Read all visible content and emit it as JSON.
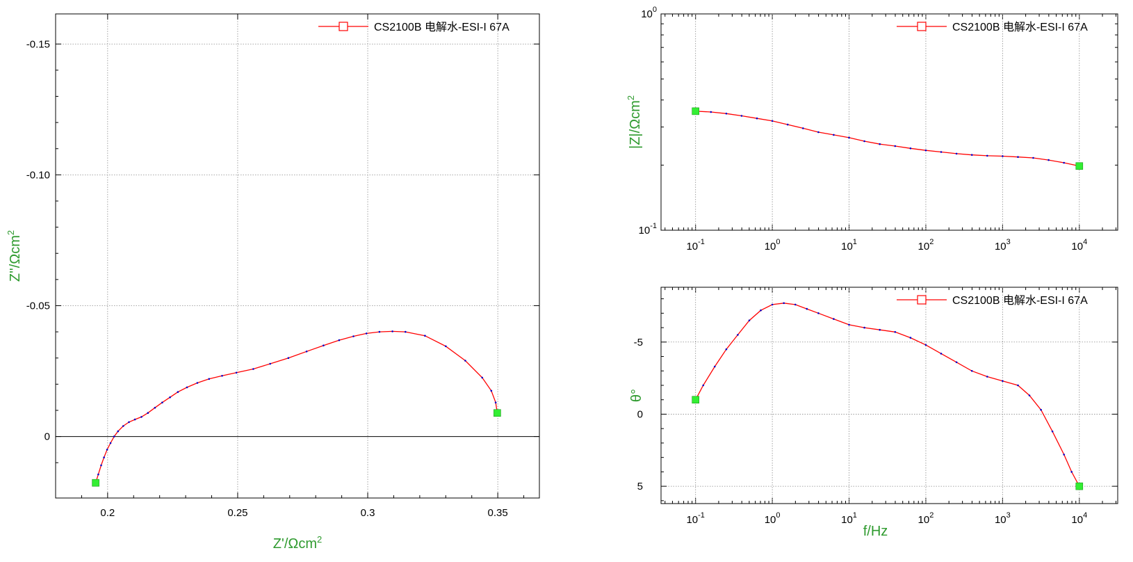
{
  "chart_data": [
    {
      "type": "scatter",
      "plot": "nyquist",
      "xlabel": "Z'/Ωcm",
      "xlabel_sup": "2",
      "ylabel": "Z''/Ωcm",
      "ylabel_sup": "2",
      "xlim": [
        0.18,
        0.366
      ],
      "ylim": [
        0.0235,
        -0.1615
      ],
      "y_inverted": true,
      "xticks": [
        0.2,
        0.25,
        0.3,
        0.35
      ],
      "xtick_labels": [
        "0.2",
        "0.25",
        "0.3",
        "0.35"
      ],
      "yticks": [
        0,
        -0.05,
        -0.1,
        -0.15
      ],
      "ytick_labels": [
        "0",
        "-0.05",
        "-0.10",
        "-0.15"
      ],
      "grid": true,
      "zero_line": true,
      "legend": "top-right",
      "series": [
        {
          "name": "CS2100B 电解水-ESI-I 67A",
          "color": "#ff0000",
          "marker_color": "#0000cc",
          "endpoint_color": "#33ee33",
          "x": [
            0.1954,
            0.1964,
            0.1975,
            0.1986,
            0.1998,
            0.2011,
            0.2025,
            0.204,
            0.206,
            0.2082,
            0.2105,
            0.213,
            0.2155,
            0.2182,
            0.221,
            0.224,
            0.227,
            0.2305,
            0.2345,
            0.239,
            0.244,
            0.2495,
            0.256,
            0.2625,
            0.2695,
            0.2765,
            0.283,
            0.289,
            0.2945,
            0.2995,
            0.3045,
            0.3095,
            0.3145,
            0.322,
            0.33,
            0.3375,
            0.344,
            0.3475,
            0.3492,
            0.3498
          ],
          "y": [
            0.0177,
            0.0145,
            0.011,
            0.008,
            0.005,
            0.0025,
            0.0,
            -0.002,
            -0.004,
            -0.0055,
            -0.0065,
            -0.0075,
            -0.009,
            -0.011,
            -0.013,
            -0.015,
            -0.017,
            -0.0188,
            -0.0205,
            -0.022,
            -0.0232,
            -0.0244,
            -0.0258,
            -0.0278,
            -0.03,
            -0.0325,
            -0.0348,
            -0.0368,
            -0.0383,
            -0.0394,
            -0.04,
            -0.0402,
            -0.04,
            -0.0385,
            -0.0345,
            -0.029,
            -0.0225,
            -0.0175,
            -0.013,
            -0.009
          ]
        }
      ]
    },
    {
      "type": "line",
      "plot": "bode-magnitude",
      "xlabel": "",
      "ylabel": "|Z|/Ωcm",
      "ylabel_sup": "2",
      "x_scale": "log",
      "y_scale": "log",
      "xlim_log10": [
        -1.45,
        4.5
      ],
      "ylim": [
        0.1,
        1
      ],
      "xtick_base": "10",
      "xtick_exps": [
        "-1",
        "0",
        "1",
        "2",
        "3",
        "4"
      ],
      "ytick_base": "10",
      "ytick_exps": [
        "-1",
        "0"
      ],
      "grid": true,
      "legend": "top-right",
      "series": [
        {
          "name": "CS2100B 电解水-ESI-I 67A",
          "color": "#ff0000",
          "marker_color": "#0000cc",
          "endpoint_color": "#33ee33",
          "log10_f": [
            -1.0,
            -0.8,
            -0.6,
            -0.4,
            -0.2,
            0.0,
            0.2,
            0.4,
            0.6,
            0.8,
            1.0,
            1.2,
            1.4,
            1.6,
            1.8,
            2.0,
            2.2,
            2.4,
            2.6,
            2.8,
            3.0,
            3.2,
            3.4,
            3.6,
            3.8,
            4.0
          ],
          "z": [
            0.355,
            0.352,
            0.346,
            0.338,
            0.329,
            0.32,
            0.308,
            0.296,
            0.284,
            0.276,
            0.268,
            0.258,
            0.25,
            0.245,
            0.239,
            0.234,
            0.23,
            0.226,
            0.223,
            0.221,
            0.22,
            0.218,
            0.216,
            0.211,
            0.205,
            0.198
          ]
        }
      ]
    },
    {
      "type": "line",
      "plot": "bode-phase",
      "xlabel": "f/Hz",
      "ylabel": "θ°",
      "x_scale": "log",
      "xlim_log10": [
        -1.45,
        4.5
      ],
      "ylim": [
        6.2,
        -8.8
      ],
      "y_inverted": true,
      "yticks": [
        5,
        0,
        -5
      ],
      "ytick_labels": [
        "5",
        "0",
        "-5"
      ],
      "xtick_base": "10",
      "xtick_exps": [
        "-1",
        "0",
        "1",
        "2",
        "3",
        "4"
      ],
      "grid": true,
      "legend": "top-right",
      "series": [
        {
          "name": "CS2100B 电解水-ESI-I 67A",
          "color": "#ff0000",
          "marker_color": "#0000cc",
          "endpoint_color": "#33ee33",
          "log10_f": [
            -1.0,
            -0.9,
            -0.75,
            -0.6,
            -0.45,
            -0.3,
            -0.15,
            0.0,
            0.15,
            0.3,
            0.45,
            0.6,
            0.8,
            1.0,
            1.2,
            1.4,
            1.6,
            1.8,
            2.0,
            2.2,
            2.4,
            2.6,
            2.8,
            3.0,
            3.2,
            3.35,
            3.5,
            3.65,
            3.8,
            3.9,
            4.0
          ],
          "theta": [
            -1.0,
            -2.0,
            -3.3,
            -4.5,
            -5.5,
            -6.5,
            -7.2,
            -7.6,
            -7.7,
            -7.6,
            -7.3,
            -7.0,
            -6.6,
            -6.2,
            -6.0,
            -5.85,
            -5.7,
            -5.3,
            -4.8,
            -4.2,
            -3.6,
            -3.0,
            -2.6,
            -2.3,
            -2.0,
            -1.3,
            -0.3,
            1.2,
            2.8,
            4.0,
            5.0
          ]
        }
      ]
    }
  ]
}
